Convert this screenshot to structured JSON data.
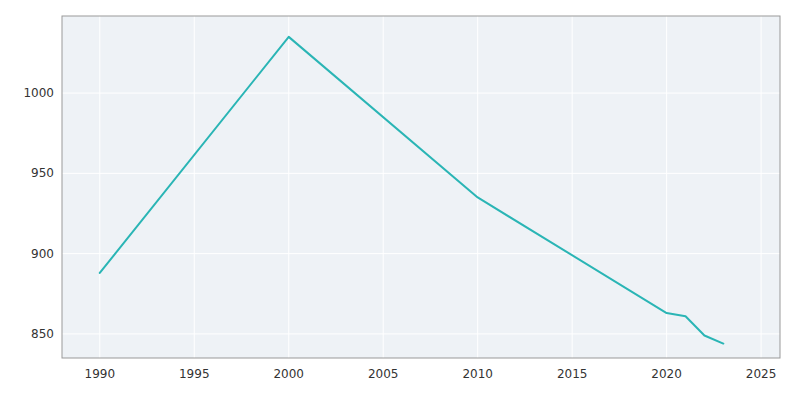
{
  "chart_data": {
    "type": "line",
    "x": [
      1990,
      2000,
      2010,
      2020,
      2021,
      2022,
      2023
    ],
    "values": [
      888,
      1035,
      935,
      863,
      861,
      849,
      844
    ],
    "color": "#2ab5b5",
    "xlim": [
      1988,
      2026
    ],
    "ylim": [
      835,
      1048
    ],
    "xticks": [
      1990,
      1995,
      2000,
      2005,
      2010,
      2015,
      2020,
      2025
    ],
    "yticks": [
      850,
      900,
      950,
      1000
    ],
    "grid": true
  }
}
